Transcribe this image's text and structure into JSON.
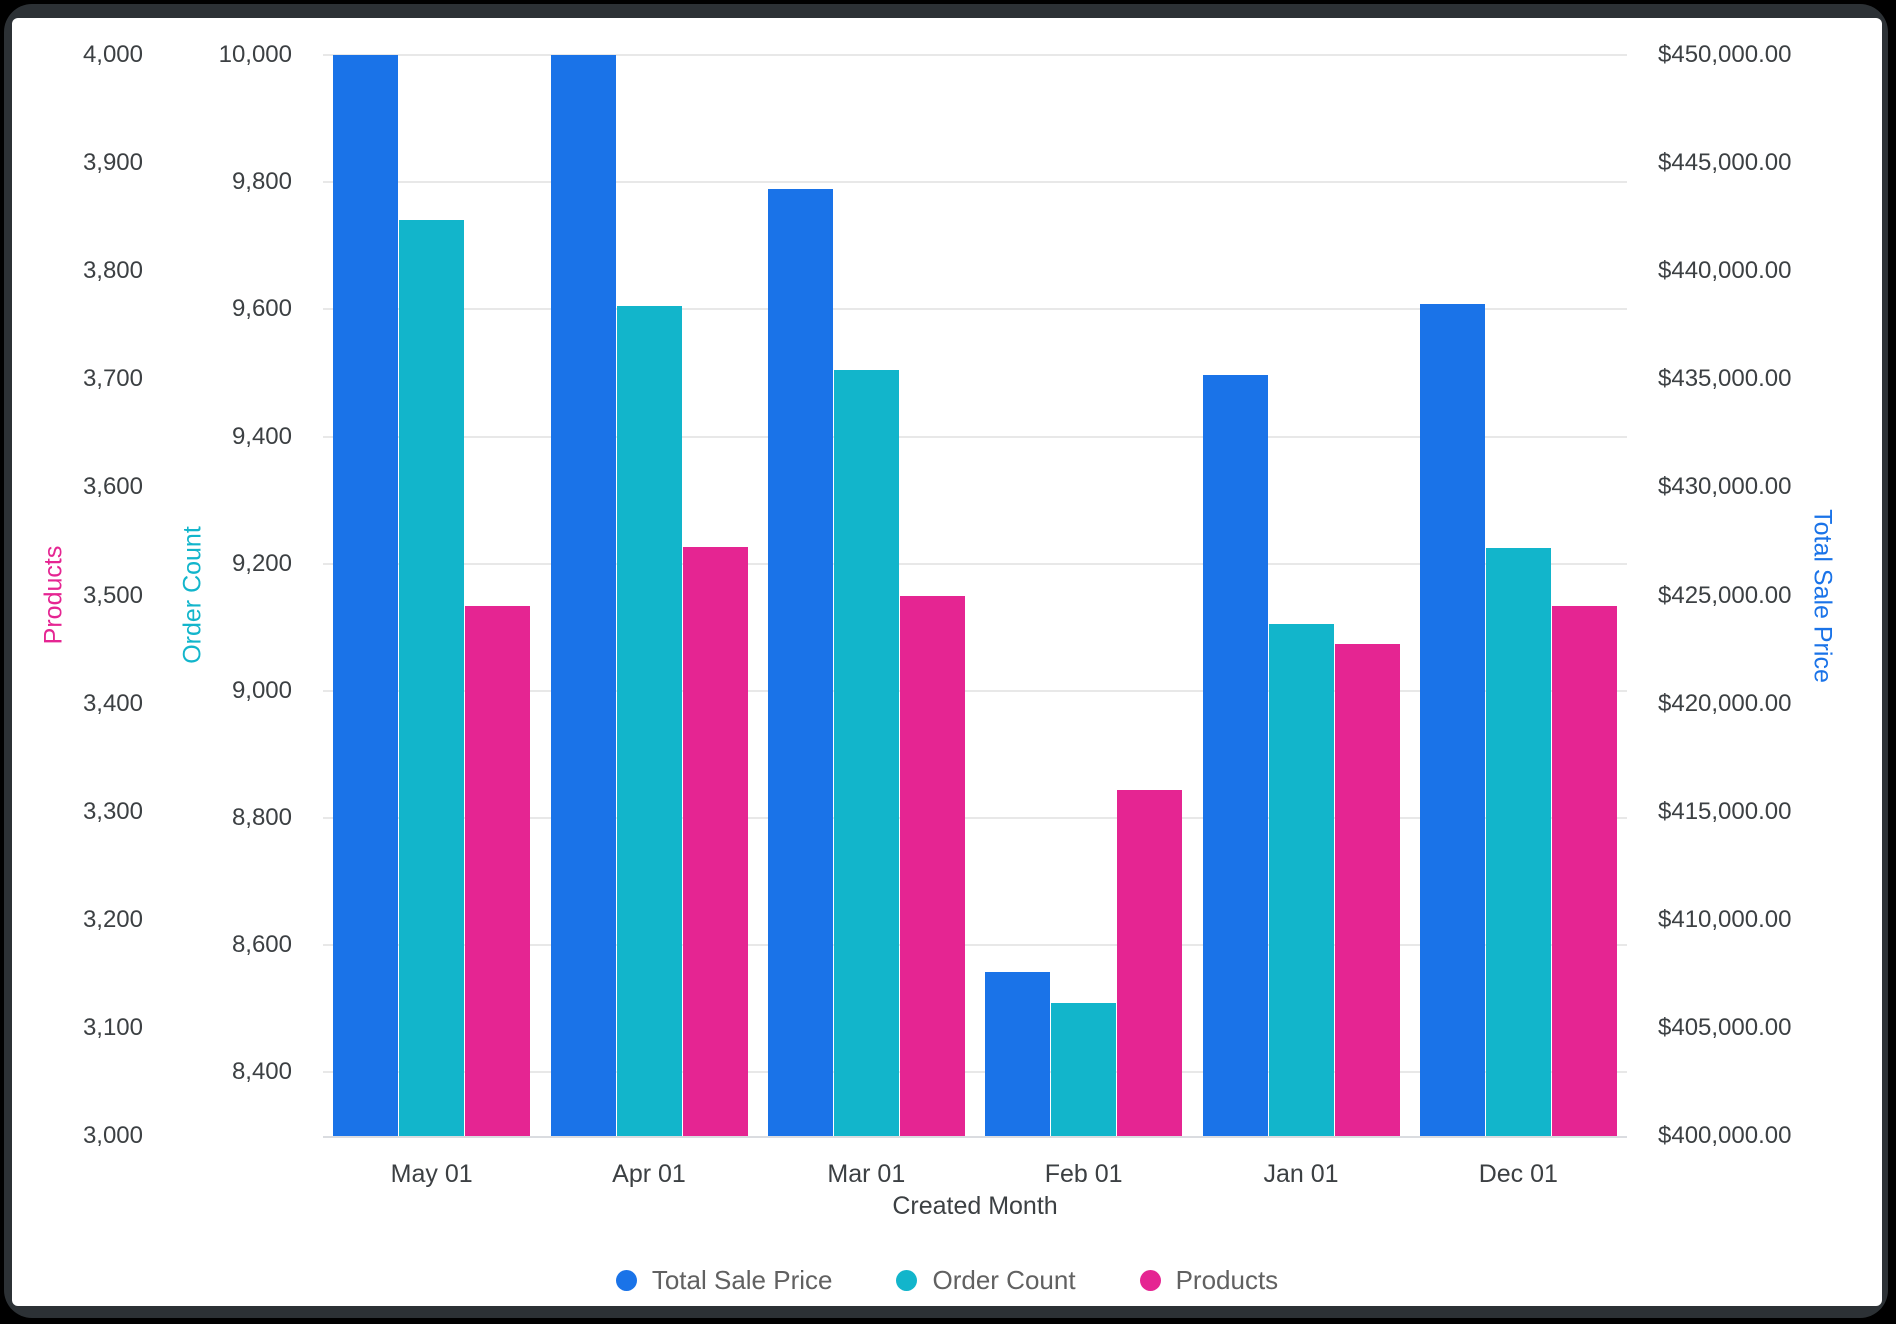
{
  "page": {
    "background": "#000000",
    "frame_color": "#2c3135",
    "canvas_color": "#ffffff",
    "gridline_color": "#e8e8e8",
    "axis_line_color": "#dadce0",
    "tick_text_color": "#3c4043",
    "legend_text_color": "#616161"
  },
  "chart_data": {
    "type": "bar",
    "subtype": "grouped-vertical-multi-axis",
    "title": "",
    "xlabel": "Created Month",
    "grid": "horizontal-on",
    "legend_position": "bottom-center",
    "categories": [
      "May 01",
      "Apr 01",
      "Mar 01",
      "Feb 01",
      "Jan 01",
      "Dec 01"
    ],
    "axes": {
      "products": {
        "title": "Products",
        "color": "#E52592",
        "side": "left-outer",
        "min": 3000,
        "max": 4000,
        "ticks": [
          {
            "v": 4000,
            "label": "4,000"
          },
          {
            "v": 3900,
            "label": "3,900"
          },
          {
            "v": 3800,
            "label": "3,800"
          },
          {
            "v": 3700,
            "label": "3,700"
          },
          {
            "v": 3600,
            "label": "3,600"
          },
          {
            "v": 3500,
            "label": "3,500"
          },
          {
            "v": 3400,
            "label": "3,400"
          },
          {
            "v": 3300,
            "label": "3,300"
          },
          {
            "v": 3200,
            "label": "3,200"
          },
          {
            "v": 3100,
            "label": "3,100"
          },
          {
            "v": 3000,
            "label": "3,000"
          }
        ]
      },
      "order_count": {
        "title": "Order Count",
        "color": "#12B5CB",
        "side": "left-inner",
        "min": 8300,
        "max": 10000,
        "gridlines_from_this_axis": true,
        "ticks": [
          {
            "v": 10000,
            "label": "10,000"
          },
          {
            "v": 9800,
            "label": "9,800"
          },
          {
            "v": 9600,
            "label": "9,600"
          },
          {
            "v": 9400,
            "label": "9,400"
          },
          {
            "v": 9200,
            "label": "9,200"
          },
          {
            "v": 9000,
            "label": "9,000"
          },
          {
            "v": 8800,
            "label": "8,800"
          },
          {
            "v": 8600,
            "label": "8,600"
          },
          {
            "v": 8400,
            "label": "8,400"
          }
        ]
      },
      "total_sale_price": {
        "title": "Total Sale Price",
        "color": "#1A73E8",
        "side": "right",
        "min": 400000,
        "max": 450000,
        "ticks": [
          {
            "v": 450000,
            "label": "$450,000.00"
          },
          {
            "v": 445000,
            "label": "$445,000.00"
          },
          {
            "v": 440000,
            "label": "$440,000.00"
          },
          {
            "v": 435000,
            "label": "$435,000.00"
          },
          {
            "v": 430000,
            "label": "$430,000.00"
          },
          {
            "v": 425000,
            "label": "$425,000.00"
          },
          {
            "v": 420000,
            "label": "$420,000.00"
          },
          {
            "v": 415000,
            "label": "$415,000.00"
          },
          {
            "v": 410000,
            "label": "$410,000.00"
          },
          {
            "v": 405000,
            "label": "$405,000.00"
          },
          {
            "v": 400000,
            "label": "$400,000.00"
          }
        ]
      }
    },
    "series": [
      {
        "name": "Total Sale Price",
        "axis": "total_sale_price",
        "color": "#1A73E8",
        "values": [
          450000,
          450000,
          443800,
          407600,
          435200,
          438500
        ]
      },
      {
        "name": "Order Count",
        "axis": "order_count",
        "color": "#12B5CB",
        "values": [
          9740,
          9605,
          9505,
          8510,
          9105,
          9225
        ]
      },
      {
        "name": "Products",
        "axis": "products",
        "color": "#E52592",
        "values": [
          3490,
          3545,
          3500,
          3320,
          3455,
          3490
        ]
      }
    ]
  }
}
